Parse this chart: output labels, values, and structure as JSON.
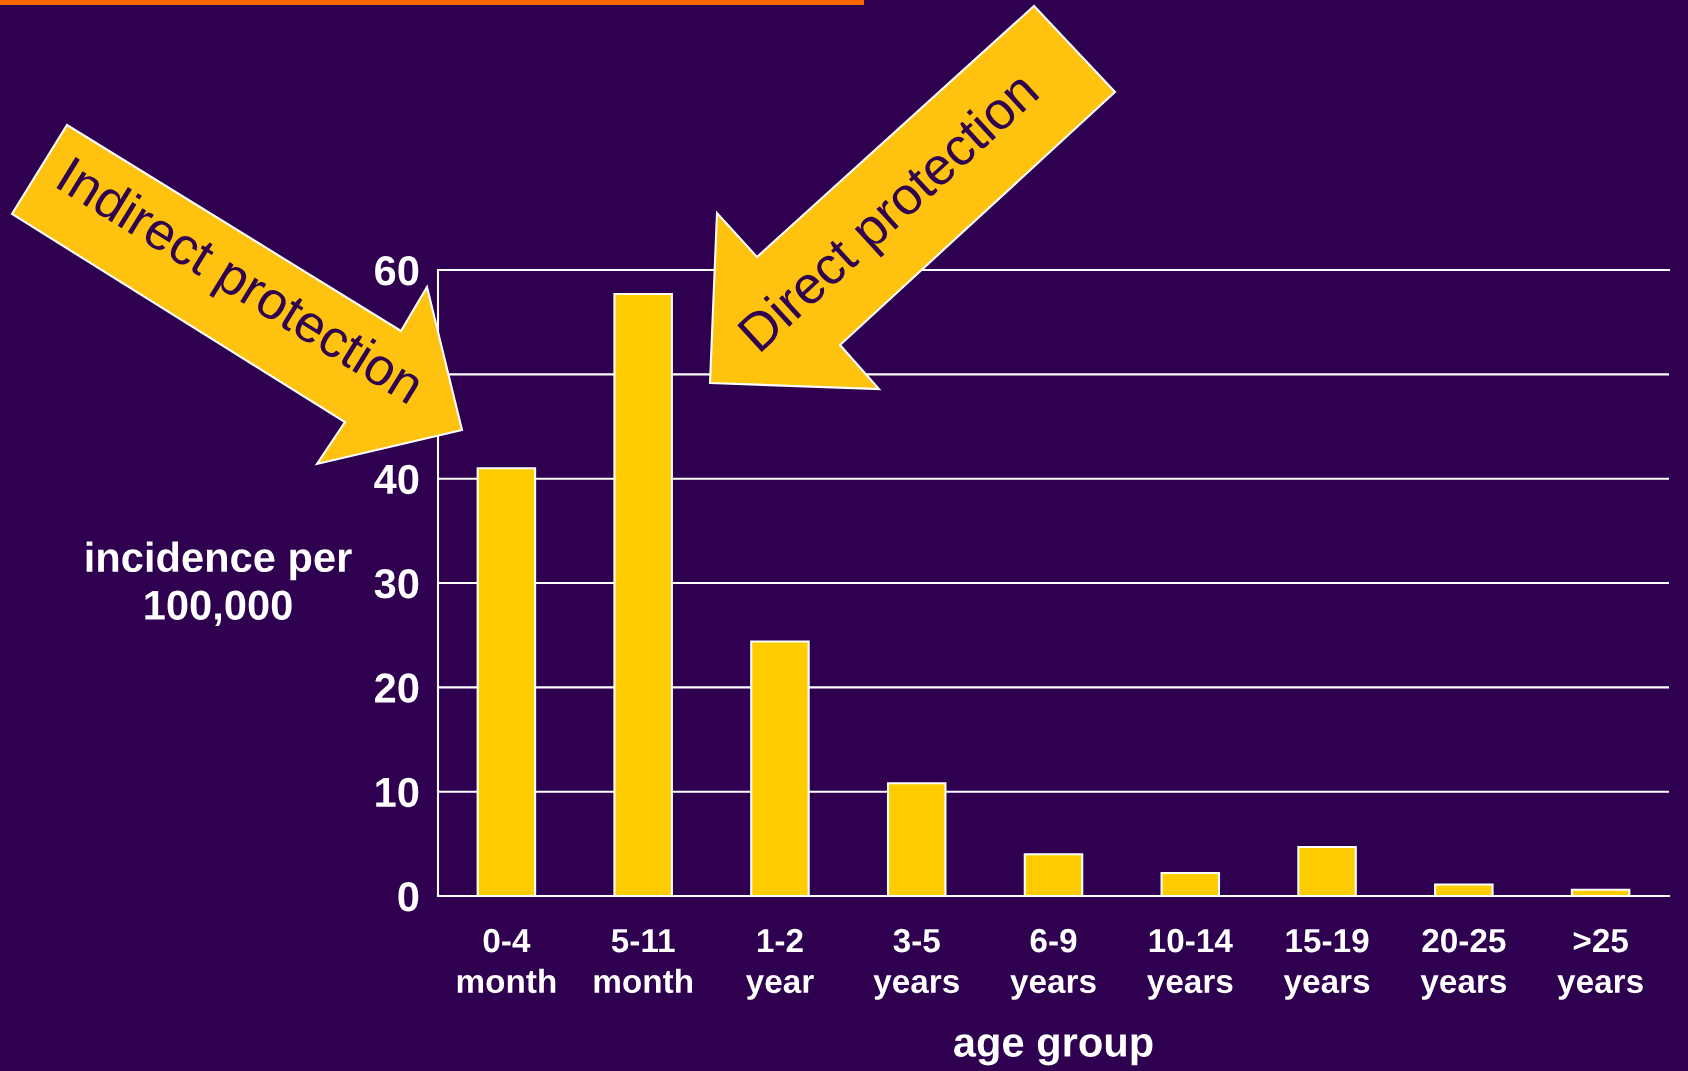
{
  "chart_data": {
    "type": "bar",
    "categories": [
      "0-4\nmonth",
      "5-11\nmonth",
      "1-2\nyear",
      "3-5\nyears",
      "6-9\nyears",
      "10-14\nyears",
      "15-19\nyears",
      "20-25\nyears",
      ">25\nyears"
    ],
    "values": [
      41,
      57.7,
      24.4,
      10.8,
      4.0,
      2.2,
      4.7,
      1.1,
      0.6
    ],
    "color": "#ffcc00",
    "ylim": [
      0,
      60
    ],
    "yticks": [
      0,
      10,
      20,
      30,
      40,
      {
        "value": 50,
        "label": null
      },
      60
    ],
    "grid": "y",
    "xlabel": "age group",
    "ylabel": "incidence per\n100,000",
    "annotations": [
      "Indirect protection",
      "Direct protection"
    ]
  }
}
